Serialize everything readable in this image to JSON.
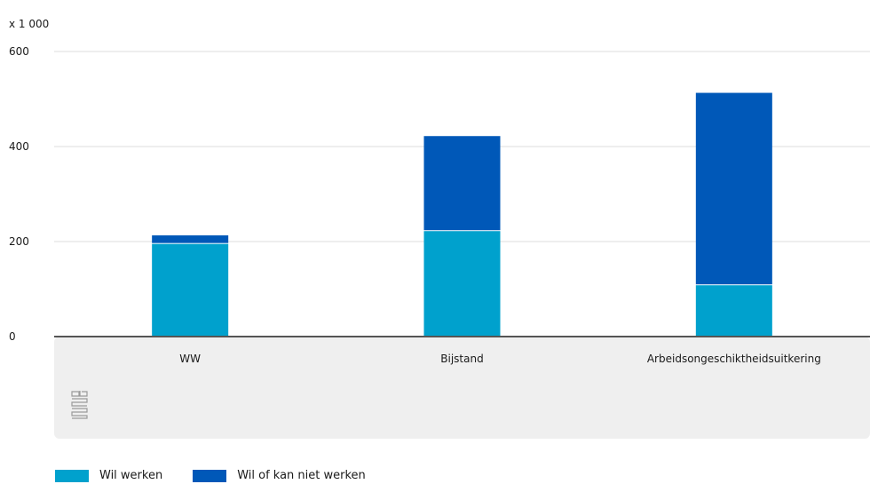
{
  "chart_data": {
    "type": "bar",
    "stacked": true,
    "unit_label": "x 1 000",
    "categories": [
      "WW",
      "Bijstand",
      "Arbeidsongeschiktheidsuitkering"
    ],
    "series": [
      {
        "name": "Wil werken",
        "color": "#00a1cd",
        "values": [
          195,
          222,
          108
        ]
      },
      {
        "name": "Wil of kan niet werken",
        "color": "#0058b8",
        "values": [
          18,
          200,
          405
        ]
      }
    ],
    "ylim": [
      0,
      600
    ],
    "yticks": [
      0,
      200,
      400,
      600
    ],
    "grid": true,
    "legend_position": "bottom-left"
  },
  "logo": {
    "icon": "cbs-logo-icon",
    "text": "cbs"
  }
}
